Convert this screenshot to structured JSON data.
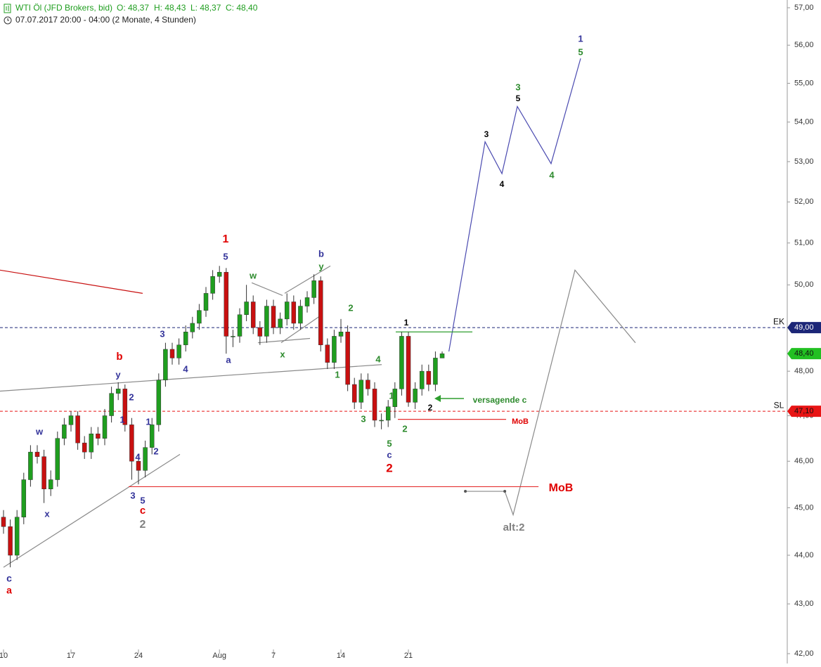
{
  "chart_data": {
    "type": "candlestick",
    "title": "WTI Öl (JFD Brokers, bid)",
    "ohlc_text": [
      "O: 48,37",
      "H: 48,43",
      "L: 48,37",
      "C: 48,40"
    ],
    "subtitle": "07.07.2017 20:00 - 04:00  (2 Monate, 4 Stunden)",
    "x": [
      0,
      0.5,
      1,
      1.5,
      2,
      2.5,
      3,
      3.5,
      4,
      4.5,
      5,
      5.5,
      6,
      6.5,
      7,
      7.5,
      8,
      8.5,
      9,
      9.5,
      10,
      10.5,
      11,
      11.5,
      12,
      12.5,
      13,
      13.5,
      14,
      14.5,
      15,
      15.5,
      16,
      16.5,
      17,
      17.5,
      18,
      18.5,
      19,
      19.5,
      20,
      20.5,
      21,
      21.5,
      22,
      22.5,
      23,
      23.5,
      24,
      24.5,
      25,
      25.5,
      26,
      26.5,
      27,
      27.5,
      28,
      28.5,
      29,
      29.5,
      30,
      30.5,
      31,
      31.5,
      32,
      32.5
    ],
    "open": [
      44.8,
      44.6,
      44.0,
      44.8,
      45.6,
      46.2,
      46.1,
      45.4,
      45.6,
      46.5,
      46.8,
      47.0,
      46.4,
      46.2,
      46.6,
      46.5,
      47.0,
      47.5,
      47.6,
      46.8,
      46.0,
      45.8,
      46.3,
      46.8,
      47.8,
      48.5,
      48.3,
      48.6,
      48.9,
      49.1,
      49.4,
      49.8,
      50.2,
      50.3,
      48.8,
      48.8,
      49.3,
      49.6,
      49.0,
      48.8,
      49.5,
      49.0,
      49.2,
      49.6,
      49.1,
      49.5,
      49.7,
      50.1,
      48.6,
      48.2,
      48.8,
      48.9,
      47.7,
      47.3,
      47.8,
      47.6,
      46.9,
      46.9,
      47.2,
      47.6,
      48.8,
      47.3,
      47.6,
      48.0,
      47.7,
      48.3
    ],
    "high": [
      44.95,
      44.75,
      44.95,
      45.75,
      46.35,
      46.35,
      46.25,
      45.8,
      46.65,
      46.95,
      47.1,
      47.1,
      46.55,
      46.75,
      46.75,
      47.15,
      47.65,
      47.75,
      47.7,
      46.95,
      46.15,
      46.45,
      46.95,
      47.95,
      48.65,
      48.65,
      48.75,
      49.05,
      49.25,
      49.55,
      49.95,
      50.35,
      50.45,
      50.4,
      48.95,
      49.45,
      50.0,
      49.75,
      49.15,
      49.65,
      49.65,
      49.35,
      49.8,
      49.75,
      49.65,
      49.85,
      50.25,
      50.2,
      48.75,
      48.95,
      49.2,
      49.05,
      47.85,
      47.95,
      47.95,
      47.75,
      47.05,
      47.35,
      47.75,
      48.9,
      48.9,
      47.75,
      48.15,
      48.15,
      48.45,
      48.45
    ],
    "low": [
      44.45,
      43.75,
      43.9,
      44.65,
      45.45,
      45.95,
      45.1,
      45.25,
      45.45,
      46.35,
      46.65,
      46.25,
      46.05,
      46.05,
      46.35,
      46.35,
      46.85,
      47.35,
      46.65,
      45.6,
      45.5,
      45.65,
      46.15,
      46.65,
      47.65,
      48.15,
      48.15,
      48.45,
      48.75,
      48.95,
      49.25,
      49.65,
      50.05,
      48.4,
      48.55,
      48.65,
      49.15,
      48.85,
      48.6,
      48.65,
      48.85,
      48.85,
      49.05,
      48.95,
      48.95,
      49.35,
      49.55,
      48.45,
      48.05,
      48.05,
      48.65,
      47.55,
      47.15,
      47.15,
      47.45,
      46.75,
      46.7,
      46.75,
      46.95,
      47.45,
      47.2,
      47.15,
      47.45,
      47.55,
      47.55,
      48.3
    ],
    "close": [
      44.6,
      44.0,
      44.8,
      45.6,
      46.2,
      46.1,
      45.4,
      45.6,
      46.5,
      46.8,
      47.0,
      46.4,
      46.2,
      46.6,
      46.5,
      47.0,
      47.5,
      47.6,
      46.8,
      46.0,
      45.8,
      46.3,
      46.8,
      47.8,
      48.5,
      48.3,
      48.6,
      48.9,
      49.1,
      49.4,
      49.8,
      50.2,
      50.3,
      48.8,
      48.8,
      49.3,
      49.6,
      49.0,
      48.8,
      49.5,
      49.0,
      49.2,
      49.6,
      49.1,
      49.5,
      49.7,
      50.1,
      48.6,
      48.2,
      48.8,
      48.9,
      47.7,
      47.3,
      47.8,
      47.6,
      46.9,
      46.9,
      47.2,
      47.6,
      48.8,
      47.3,
      47.6,
      48.0,
      47.7,
      48.3,
      48.4
    ],
    "up_color": "#1f9e1f",
    "down_color": "#c81010",
    "log_scale": true,
    "xlim": [
      -0.26,
      58.07
    ],
    "ylim": [
      42,
      57
    ],
    "xticks": [
      {
        "value": 0,
        "label": "10"
      },
      {
        "value": 5,
        "label": "17"
      },
      {
        "value": 10,
        "label": "24"
      },
      {
        "value": 16,
        "label": "Aug"
      },
      {
        "value": 20,
        "label": "7"
      },
      {
        "value": 25,
        "label": "14"
      },
      {
        "value": 30,
        "label": "21"
      }
    ],
    "yticks": [
      {
        "value": 42,
        "label": "42,00"
      },
      {
        "value": 43,
        "label": "43,00"
      },
      {
        "value": 44,
        "label": "44,00"
      },
      {
        "value": 45,
        "label": "45,00"
      },
      {
        "value": 46,
        "label": "46,00"
      },
      {
        "value": 47,
        "label": "47,00"
      },
      {
        "value": 48,
        "label": "48,00"
      },
      {
        "value": 49,
        "label": "49,00"
      },
      {
        "value": 50,
        "label": "50,00"
      },
      {
        "value": 51,
        "label": "51,00"
      },
      {
        "value": 52,
        "label": "52,00"
      },
      {
        "value": 53,
        "label": "53,00"
      },
      {
        "value": 54,
        "label": "54,00"
      },
      {
        "value": 55,
        "label": "55,00"
      },
      {
        "value": 56,
        "label": "56,00"
      },
      {
        "value": 57,
        "label": "57,00"
      }
    ],
    "levels": [
      {
        "value": 49,
        "label": "49,00",
        "tag": "EK",
        "color": "#1c2677",
        "text_color": "#ffffff",
        "line": true
      },
      {
        "value": 48.4,
        "label": "48,40",
        "color": "#22c022",
        "text_color": "#111111",
        "line": false
      },
      {
        "value": 47.1,
        "label": "47,10",
        "tag": "SL",
        "color": "#e81515",
        "text_color": "#111111",
        "line": true
      }
    ],
    "lines": [
      {
        "color": "#4a4ab0",
        "x": [
          33.0,
          35.68,
          36.93,
          38.07,
          40.57,
          42.76
        ],
        "y": [
          48.45,
          53.5,
          52.7,
          54.4,
          52.95,
          55.65
        ]
      },
      {
        "color": "#8a8a8a",
        "x": [
          34.22,
          37.14,
          37.76,
          42.34,
          46.82
        ],
        "y": [
          45.35,
          45.35,
          44.85,
          50.35,
          48.65
        ]
      },
      {
        "color": "#c81010",
        "x": [
          -0.26,
          10.31
        ],
        "y": [
          50.35,
          49.8
        ]
      },
      {
        "color": "#8a8a8a",
        "x": [
          0,
          13.07
        ],
        "y": [
          43.75,
          46.15
        ]
      },
      {
        "color": "#8a8a8a",
        "x": [
          -0.26,
          28.02
        ],
        "y": [
          47.55,
          48.15
        ]
      },
      {
        "color": "#8a8a8a",
        "x": [
          18.39,
          20.68
        ],
        "y": [
          50.05,
          49.75
        ]
      },
      {
        "color": "#8a8a8a",
        "x": [
          18.85,
          22.71
        ],
        "y": [
          48.65,
          48.75
        ]
      },
      {
        "color": "#8a8a8a",
        "x": [
          20.83,
          24.22
        ],
        "y": [
          49.8,
          50.45
        ]
      },
      {
        "color": "#8a8a8a",
        "x": [
          20.57,
          23.59
        ],
        "y": [
          48.65,
          49.3
        ]
      },
      {
        "color": "#2e9e2e",
        "x": [
          29.06,
          34.74
        ],
        "y": [
          48.9,
          48.9
        ]
      },
      {
        "color": "#e53030",
        "x": [
          29.22,
          37.24
        ],
        "y": [
          46.92,
          46.92
        ]
      },
      {
        "color": "#e53030",
        "x": [
          9.27,
          39.64
        ],
        "y": [
          45.45,
          45.45
        ]
      }
    ],
    "annotations": [
      {
        "text": "c",
        "color": "#33339a"
      },
      {
        "text": "a",
        "color": "#e00000"
      },
      {
        "text": "w",
        "color": "#33339a"
      },
      {
        "text": "x",
        "color": "#33339a"
      },
      {
        "text": "b",
        "color": "#e00000"
      },
      {
        "text": "y",
        "color": "#33339a"
      },
      {
        "text": "2",
        "color": "#33339a"
      },
      {
        "text": "1",
        "color": "#33339a"
      },
      {
        "text": "1",
        "color": "#33339a"
      },
      {
        "text": "4",
        "color": "#33339a"
      },
      {
        "text": "2",
        "color": "#33339a"
      },
      {
        "text": "3",
        "color": "#33339a"
      },
      {
        "text": "5",
        "color": "#33339a"
      },
      {
        "text": "c",
        "color": "#e00000"
      },
      {
        "text": "2",
        "color": "#808080"
      },
      {
        "text": "3",
        "color": "#33339a"
      },
      {
        "text": "4",
        "color": "#33339a"
      },
      {
        "text": "1",
        "color": "#e00000"
      },
      {
        "text": "5",
        "color": "#33339a"
      },
      {
        "text": "a",
        "color": "#33339a"
      },
      {
        "text": "w",
        "color": "#2e8b2e"
      },
      {
        "text": "x",
        "color": "#2e8b2e"
      },
      {
        "text": "b",
        "color": "#33339a"
      },
      {
        "text": "y",
        "color": "#2e8b2e"
      },
      {
        "text": "2",
        "color": "#2e8b2e"
      },
      {
        "text": "1",
        "color": "#2e8b2e"
      },
      {
        "text": "4",
        "color": "#2e8b2e"
      },
      {
        "text": "3",
        "color": "#2e8b2e"
      },
      {
        "text": "1",
        "color": "#2e8b2e"
      },
      {
        "text": "5",
        "color": "#2e8b2e"
      },
      {
        "text": "c",
        "color": "#33339a"
      },
      {
        "text": "2",
        "color": "#e00000"
      },
      {
        "text": "2",
        "color": "#2e8b2e"
      },
      {
        "text": "1",
        "color": "#000000"
      },
      {
        "text": "2",
        "color": "#000000"
      },
      {
        "text": "versagende c",
        "color": "#2e8b2e"
      },
      {
        "text": "MoB",
        "color": "#e00000"
      },
      {
        "text": "MoB",
        "color": "#e00000"
      },
      {
        "text": "alt:2",
        "color": "#808080"
      },
      {
        "text": "3",
        "color": "#000000"
      },
      {
        "text": "4",
        "color": "#000000"
      },
      {
        "text": "3",
        "color": "#2e8b2e"
      },
      {
        "text": "5",
        "color": "#000000"
      },
      {
        "text": "4",
        "color": "#2e8b2e"
      },
      {
        "text": "1",
        "color": "#33339a"
      },
      {
        "text": "5",
        "color": "#2e8b2e"
      }
    ]
  }
}
